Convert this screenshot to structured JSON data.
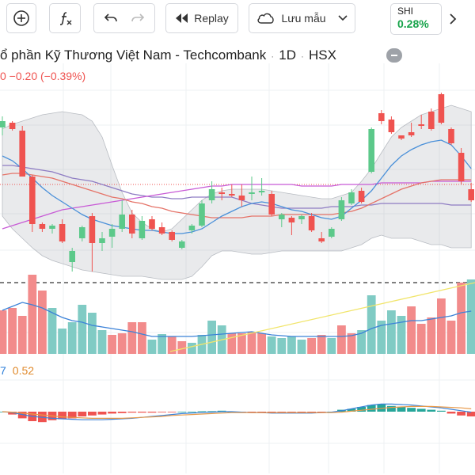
{
  "toolbar": {
    "replay_label": "Replay",
    "save_label": "Lưu mẫu",
    "symbol_chip": {
      "symbol": "SHI",
      "change": "0.28%",
      "color": "#16a34a"
    }
  },
  "chart_header": {
    "title_name": "ổ phần Kỹ Thương Việt Nam - Techcombank",
    "interval": "1D",
    "exchange": "HSX",
    "change": "0 −0.20 (−0.39%)"
  },
  "macd_values": {
    "v1": "7",
    "v2": "0.52"
  },
  "colors": {
    "up": "#26a69a",
    "down": "#ef5350",
    "volume_up": "#80cbc4",
    "volume_down": "#f28b8b",
    "ma_blue": "#4a90d9",
    "ma_red": "#e57368",
    "ma_purple": "#8e7cc3",
    "ma_magenta": "#c85bd6"
  },
  "chart_data": {
    "type": "candlestick",
    "candles": [
      {
        "o": 0.36,
        "h": 0.43,
        "l": 0.31,
        "c": 0.4
      },
      {
        "o": 0.39,
        "h": 0.4,
        "l": 0.34,
        "c": 0.35
      },
      {
        "o": 0.34,
        "h": 0.37,
        "l": 0.05,
        "c": 0.05
      },
      {
        "o": 0.05,
        "h": 0.06,
        "l": -0.3,
        "c": -0.25
      },
      {
        "o": -0.25,
        "h": -0.24,
        "l": -0.3,
        "c": -0.28
      },
      {
        "o": -0.28,
        "h": -0.25,
        "l": -0.31,
        "c": -0.26
      },
      {
        "o": -0.25,
        "h": -0.22,
        "l": -0.37,
        "c": -0.36
      },
      {
        "o": -0.49,
        "h": -0.4,
        "l": -0.55,
        "c": -0.42
      },
      {
        "o": -0.34,
        "h": -0.26,
        "l": -0.36,
        "c": -0.27
      },
      {
        "o": -0.2,
        "h": -0.18,
        "l": -0.55,
        "c": -0.37
      },
      {
        "o": -0.37,
        "h": -0.3,
        "l": -0.42,
        "c": -0.34
      },
      {
        "o": -0.33,
        "h": -0.25,
        "l": -0.4,
        "c": -0.28
      },
      {
        "o": -0.28,
        "h": -0.1,
        "l": -0.3,
        "c": -0.19
      },
      {
        "o": -0.19,
        "h": -0.16,
        "l": -0.34,
        "c": -0.31
      },
      {
        "o": -0.34,
        "h": -0.2,
        "l": -0.35,
        "c": -0.23
      },
      {
        "o": -0.22,
        "h": -0.2,
        "l": -0.29,
        "c": -0.28
      },
      {
        "o": -0.27,
        "h": -0.24,
        "l": -0.32,
        "c": -0.31
      },
      {
        "o": -0.3,
        "h": -0.29,
        "l": -0.36,
        "c": -0.35
      },
      {
        "o": -0.4,
        "h": -0.35,
        "l": -0.41,
        "c": -0.36
      },
      {
        "o": -0.29,
        "h": -0.25,
        "l": -0.31,
        "c": -0.26
      },
      {
        "o": -0.26,
        "h": -0.1,
        "l": -0.27,
        "c": -0.12
      },
      {
        "o": -0.1,
        "h": 0.02,
        "l": -0.12,
        "c": -0.03
      },
      {
        "o": -0.05,
        "h": -0.02,
        "l": -0.1,
        "c": -0.06
      },
      {
        "o": -0.06,
        "h": 0.0,
        "l": -0.08,
        "c": -0.07
      },
      {
        "o": -0.07,
        "h": 0.0,
        "l": -0.14,
        "c": -0.1
      },
      {
        "o": -0.06,
        "h": 0.05,
        "l": -0.1,
        "c": -0.05
      },
      {
        "o": -0.05,
        "h": 0.04,
        "l": -0.07,
        "c": -0.04
      },
      {
        "o": -0.06,
        "h": -0.04,
        "l": -0.2,
        "c": -0.19
      },
      {
        "o": -0.22,
        "h": -0.18,
        "l": -0.27,
        "c": -0.19
      },
      {
        "o": -0.21,
        "h": -0.2,
        "l": -0.32,
        "c": -0.24
      },
      {
        "o": -0.22,
        "h": -0.19,
        "l": -0.25,
        "c": -0.2
      },
      {
        "o": -0.2,
        "h": -0.18,
        "l": -0.3,
        "c": -0.29
      },
      {
        "o": -0.34,
        "h": -0.3,
        "l": -0.37,
        "c": -0.36
      },
      {
        "o": -0.33,
        "h": -0.27,
        "l": -0.34,
        "c": -0.28
      },
      {
        "o": -0.22,
        "h": -0.08,
        "l": -0.23,
        "c": -0.1
      },
      {
        "o": -0.12,
        "h": -0.03,
        "l": -0.13,
        "c": -0.05
      },
      {
        "o": -0.04,
        "h": -0.02,
        "l": -0.12,
        "c": -0.11
      },
      {
        "o": 0.08,
        "h": 0.36,
        "l": 0.07,
        "c": 0.35
      },
      {
        "o": 0.45,
        "h": 0.47,
        "l": 0.38,
        "c": 0.4
      },
      {
        "o": 0.41,
        "h": 0.43,
        "l": 0.32,
        "c": 0.33
      },
      {
        "o": 0.31,
        "h": 0.3,
        "l": 0.28,
        "c": 0.29
      },
      {
        "o": 0.33,
        "h": 0.39,
        "l": 0.3,
        "c": 0.31
      },
      {
        "o": 0.38,
        "h": 0.44,
        "l": 0.35,
        "c": 0.37
      },
      {
        "o": 0.46,
        "h": 0.48,
        "l": 0.34,
        "c": 0.35
      },
      {
        "o": 0.57,
        "h": 0.58,
        "l": 0.38,
        "c": 0.39
      },
      {
        "o": 0.35,
        "h": 0.36,
        "l": 0.25,
        "c": 0.26
      },
      {
        "o": 0.2,
        "h": 0.23,
        "l": 0.0,
        "c": 0.02
      },
      {
        "o": -0.03,
        "h": 0.01,
        "l": -0.11,
        "c": -0.1
      }
    ],
    "volumes": [
      {
        "v": 0.55,
        "up": false
      },
      {
        "v": 0.58,
        "up": false
      },
      {
        "v": 0.48,
        "up": false
      },
      {
        "v": 1.0,
        "up": false
      },
      {
        "v": 0.8,
        "up": false
      },
      {
        "v": 0.58,
        "up": true
      },
      {
        "v": 0.32,
        "up": true
      },
      {
        "v": 0.4,
        "up": true
      },
      {
        "v": 0.62,
        "up": true
      },
      {
        "v": 0.52,
        "up": true
      },
      {
        "v": 0.3,
        "up": true
      },
      {
        "v": 0.24,
        "up": false
      },
      {
        "v": 0.26,
        "up": false
      },
      {
        "v": 0.4,
        "up": false
      },
      {
        "v": 0.4,
        "up": false
      },
      {
        "v": 0.18,
        "up": true
      },
      {
        "v": 0.25,
        "up": true
      },
      {
        "v": 0.22,
        "up": false
      },
      {
        "v": 0.16,
        "up": false
      },
      {
        "v": 0.14,
        "up": true
      },
      {
        "v": 0.24,
        "up": true
      },
      {
        "v": 0.42,
        "up": true
      },
      {
        "v": 0.36,
        "up": true
      },
      {
        "v": 0.26,
        "up": false
      },
      {
        "v": 0.26,
        "up": false
      },
      {
        "v": 0.28,
        "up": false
      },
      {
        "v": 0.26,
        "up": false
      },
      {
        "v": 0.22,
        "up": true
      },
      {
        "v": 0.2,
        "up": true
      },
      {
        "v": 0.22,
        "up": true
      },
      {
        "v": 0.18,
        "up": true
      },
      {
        "v": 0.2,
        "up": false
      },
      {
        "v": 0.24,
        "up": false
      },
      {
        "v": 0.2,
        "up": true
      },
      {
        "v": 0.36,
        "up": false
      },
      {
        "v": 0.26,
        "up": false
      },
      {
        "v": 0.3,
        "up": true
      },
      {
        "v": 0.74,
        "up": true
      },
      {
        "v": 0.42,
        "up": true
      },
      {
        "v": 0.55,
        "up": true
      },
      {
        "v": 0.48,
        "up": true
      },
      {
        "v": 0.6,
        "up": false
      },
      {
        "v": 0.38,
        "up": false
      },
      {
        "v": 0.46,
        "up": false
      },
      {
        "v": 0.7,
        "up": false
      },
      {
        "v": 0.42,
        "up": false
      },
      {
        "v": 0.9,
        "up": false
      },
      {
        "v": 0.94,
        "up": true
      }
    ],
    "macd_hist": [
      0.0,
      -0.06,
      -0.14,
      -0.2,
      -0.22,
      -0.18,
      -0.16,
      -0.14,
      -0.1,
      -0.08,
      -0.06,
      -0.04,
      -0.03,
      -0.02,
      -0.02,
      -0.02,
      -0.01,
      -0.01,
      0.0,
      0.0,
      0.01,
      0.01,
      0.02,
      0.0,
      -0.01,
      -0.02,
      -0.02,
      -0.02,
      -0.01,
      -0.01,
      -0.02,
      -0.02,
      -0.01,
      0.0,
      0.04,
      0.06,
      0.1,
      0.14,
      0.16,
      0.12,
      0.1,
      0.08,
      0.06,
      0.04,
      0.02,
      -0.04,
      -0.08,
      -0.1
    ]
  }
}
